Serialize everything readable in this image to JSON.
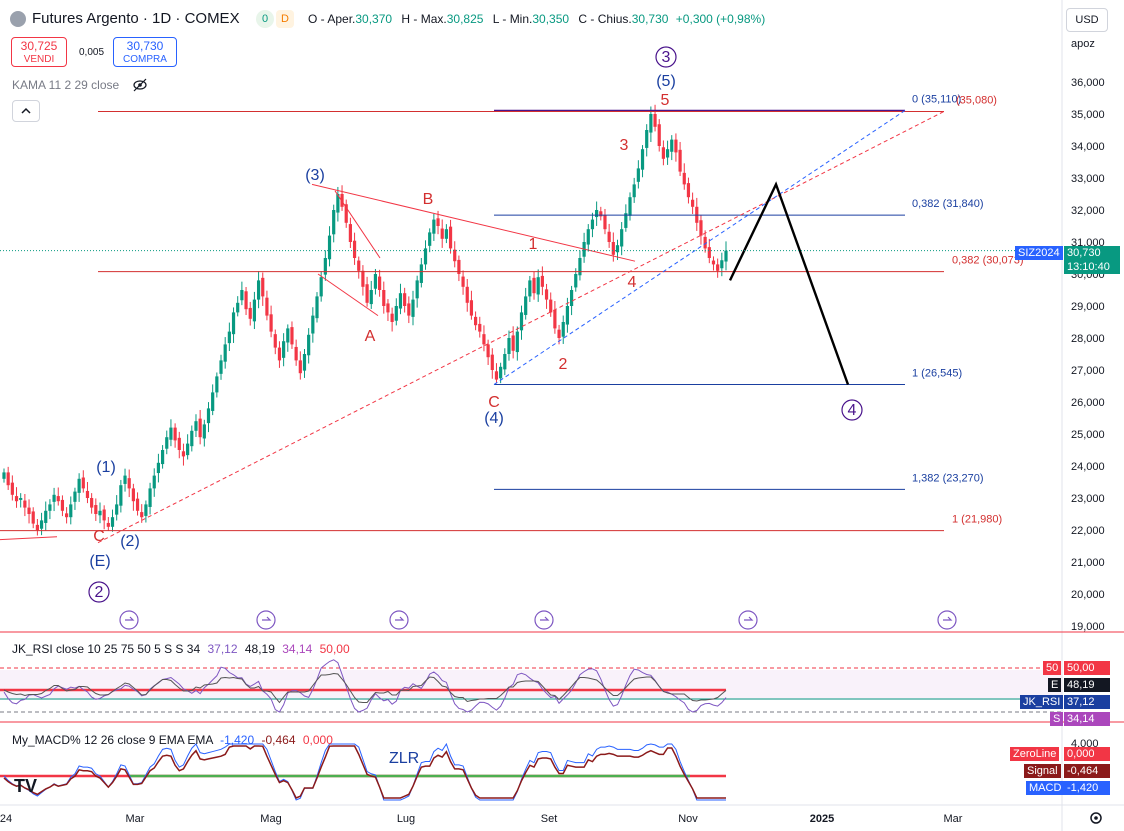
{
  "header": {
    "title": "Futures Argento · 1D · COMEX",
    "badge_green": "0",
    "badge_orange": "D",
    "ohlc": {
      "open_label": "O - Aper.",
      "open": "30,370",
      "high_label": "H - Max.",
      "high": "30,825",
      "low_label": "L - Min.",
      "low": "30,350",
      "close_label": "C - Chius.",
      "close": "30,730",
      "change": "+0,300 (+0,98%)"
    },
    "sell": {
      "price": "30,725",
      "label": "VENDI"
    },
    "spread": "0,005",
    "buy": {
      "price": "30,730",
      "label": "COMPRA"
    },
    "indicator": "KAMA 11 2 29 close",
    "collapse_icon": "chevron-up"
  },
  "price_axis": {
    "currency": "USD",
    "scale_mode": "apoz",
    "ticks": [
      "36,000",
      "35,000",
      "34,000",
      "33,000",
      "32,000",
      "31,000",
      "30,000",
      "29,000",
      "28,000",
      "27,000",
      "26,000",
      "25,000",
      "24,000",
      "23,000",
      "22,000",
      "21,000",
      "20,000",
      "19,000"
    ],
    "symbol_badge": "SIZ2024",
    "last_price": "30,730",
    "countdown": "13:10:40"
  },
  "time_axis": {
    "labels": [
      "24",
      "Mar",
      "Mag",
      "Lug",
      "Set",
      "Nov",
      "2025",
      "Mar"
    ]
  },
  "colors": {
    "up": "#089981",
    "down": "#f23645",
    "red_line": "#d32f2f",
    "blue_line": "#1a3fa0",
    "purple": "#4a148c",
    "rsi": "#7e57c2",
    "macd": "#2962ff",
    "signal": "#8b1a1a"
  },
  "chart_data": {
    "type": "candlestick",
    "title": "Futures Argento · 1D · COMEX",
    "ylim": [
      19000,
      36500
    ],
    "x_range": [
      "2024-01",
      "2025-03"
    ],
    "last_close": 30730,
    "horizontal_levels": [
      {
        "label": "0 (35,110)",
        "value": 35110,
        "color": "#1a3fa0"
      },
      {
        "label": "(35,080)",
        "value": 35080,
        "color": "#d32f2f"
      },
      {
        "label": "0,382 (31,840)",
        "value": 31840,
        "color": "#1a3fa0"
      },
      {
        "label": "0,382 (30,073)",
        "value": 30073,
        "color": "#d32f2f"
      },
      {
        "label": "1 (26,545)",
        "value": 26545,
        "color": "#1a3fa0"
      },
      {
        "label": "1,382 (23,270)",
        "value": 23270,
        "color": "#1a3fa0"
      },
      {
        "label": "1 (21,980)",
        "value": 21980,
        "color": "#d32f2f"
      }
    ],
    "wave_labels": [
      {
        "text": "(1)",
        "color": "#1a3fa0"
      },
      {
        "text": "(2)",
        "color": "#1a3fa0"
      },
      {
        "text": "C",
        "color": "#d32f2f"
      },
      {
        "text": "(E)",
        "color": "#1a3fa0"
      },
      {
        "text": "2",
        "color": "#4a148c",
        "circled": true
      },
      {
        "text": "(3)",
        "color": "#1a3fa0"
      },
      {
        "text": "A",
        "color": "#d32f2f"
      },
      {
        "text": "B",
        "color": "#d32f2f"
      },
      {
        "text": "C",
        "color": "#d32f2f"
      },
      {
        "text": "(4)",
        "color": "#1a3fa0"
      },
      {
        "text": "1",
        "color": "#d32f2f"
      },
      {
        "text": "2",
        "color": "#d32f2f"
      },
      {
        "text": "3",
        "color": "#d32f2f"
      },
      {
        "text": "4",
        "color": "#d32f2f"
      },
      {
        "text": "5",
        "color": "#d32f2f"
      },
      {
        "text": "(5)",
        "color": "#1a3fa0"
      },
      {
        "text": "3",
        "color": "#4a148c",
        "circled": true
      },
      {
        "text": "4",
        "color": "#4a148c",
        "circled": true
      }
    ],
    "projection": {
      "start": 29800,
      "top": 32800,
      "end": 26545
    },
    "closes": [
      23800,
      23400,
      23100,
      22900,
      23000,
      22700,
      22500,
      22200,
      22000,
      22300,
      22600,
      22800,
      23100,
      22900,
      22600,
      22400,
      22800,
      23200,
      23600,
      23300,
      23000,
      22700,
      22500,
      22600,
      22300,
      22100,
      22400,
      22800,
      23400,
      23700,
      23300,
      22900,
      22600,
      22400,
      22800,
      23300,
      23700,
      24100,
      24500,
      24900,
      25200,
      24800,
      24500,
      24300,
      24700,
      25100,
      25400,
      24900,
      25300,
      25800,
      26300,
      26800,
      27300,
      27800,
      28200,
      28800,
      29100,
      29500,
      28900,
      28600,
      29200,
      29800,
      29300,
      28700,
      28200,
      27700,
      27300,
      27900,
      28300,
      27800,
      27300,
      26900,
      27500,
      28100,
      28700,
      29300,
      29900,
      30500,
      31200,
      32000,
      32500,
      32100,
      31600,
      31000,
      30500,
      30100,
      29600,
      29100,
      29500,
      30000,
      29500,
      29000,
      28800,
      28500,
      29000,
      29400,
      29000,
      28700,
      29200,
      29800,
      30300,
      30800,
      31300,
      31700,
      31500,
      31100,
      31400,
      30800,
      30400,
      30000,
      29600,
      29100,
      28700,
      28400,
      28200,
      27800,
      27400,
      27000,
      26700,
      27100,
      27500,
      28000,
      27600,
      28200,
      28800,
      29300,
      29800,
      29400,
      29900,
      29600,
      29200,
      28800,
      28300,
      28000,
      28500,
      29000,
      29500,
      30000,
      30500,
      31000,
      31400,
      31700,
      32000,
      31800,
      31400,
      31000,
      30600,
      30900,
      31400,
      31900,
      32400,
      32800,
      33300,
      33900,
      34500,
      35000,
      34600,
      34000,
      33600,
      33900,
      34200,
      33800,
      33200,
      32800,
      32400,
      32100,
      31600,
      31200,
      30800,
      30500,
      30300,
      30100,
      30430,
      30730
    ],
    "rsi": {
      "title": "JK_RSI close 10 25 75 50 5 S S 34",
      "values_shown": [
        "37,12",
        "48,19",
        "34,14",
        "50,00"
      ],
      "badges": [
        {
          "label": "50",
          "value": "50,00"
        },
        {
          "label": "E",
          "value": "48,19"
        },
        {
          "label": "JK_RSI",
          "value": "37,12"
        },
        {
          "label": "S",
          "value": "34,14"
        }
      ]
    },
    "macd": {
      "title": "My_MACD% 12 26 close 9 EMA EMA",
      "values_shown": [
        "-1,420",
        "-0,464",
        "0,000"
      ],
      "annotation": "ZLR",
      "badges": [
        {
          "label": "ZeroLine",
          "value": "0,000"
        },
        {
          "label": "Signal",
          "value": "-0,464"
        },
        {
          "label": "MACD",
          "value": "-1,420"
        }
      ],
      "y_ticks": [
        "4,000",
        "0,000"
      ]
    }
  }
}
